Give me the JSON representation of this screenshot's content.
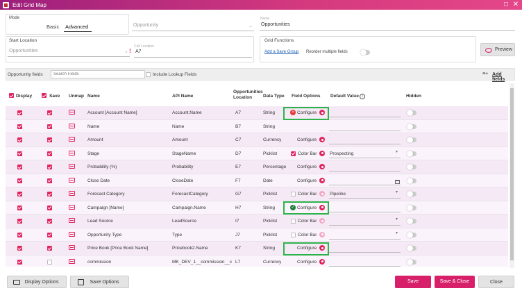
{
  "window": {
    "title": "Edit Grid Map"
  },
  "mode": {
    "label": "Mode",
    "tabs": [
      {
        "label": "Basic"
      },
      {
        "label": "Advanced"
      }
    ]
  },
  "object": {
    "hint": "",
    "value": "Opportunity"
  },
  "name": {
    "hint": "Name",
    "value": "Opportunities"
  },
  "start_location": {
    "label": "Start Location",
    "object_hint": "",
    "object_value": "Opportunities",
    "cell_hint": "Cell Location",
    "cell_value": "A7"
  },
  "grid_functions": {
    "label": "Grid Functions",
    "add_save_group": "Add a Save Group",
    "reorder_label": "Reorder multiple fields"
  },
  "preview_label": "Preview",
  "toolbar": {
    "fields_label": "Opportunity fields",
    "search_placeholder": "Search Fields",
    "include_lookup": "Include Lookup Fields",
    "add_fields": "Add fields"
  },
  "columns": {
    "display": "Display",
    "save": "Save",
    "unmap": "Unmap",
    "name": "Name",
    "api_name": "API Name",
    "location": "Opportunities Location",
    "data_type": "Data Type",
    "field_options": "Field Options",
    "default_value": "Default Value",
    "hidden": "Hidden"
  },
  "rows": [
    {
      "name": "Account [Account Name]",
      "api": "Account.Name",
      "loc": "A7",
      "type": "String",
      "option": "configure",
      "status": "error",
      "configure": "Configure",
      "default": "",
      "save": true,
      "hl": true
    },
    {
      "name": "Name",
      "api": "Name",
      "loc": "B7",
      "type": "String",
      "option": "none",
      "default": "",
      "save": true
    },
    {
      "name": "Amount",
      "api": "Amount",
      "loc": "C7",
      "type": "Currency",
      "option": "configure",
      "configure": "Configure",
      "default": "",
      "save": true
    },
    {
      "name": "Stage",
      "api": "StageName",
      "loc": "D7",
      "type": "Picklist",
      "option": "colorbar",
      "colorbar_checked": true,
      "colorbar": "Color Bar",
      "default": "Prospecting",
      "select": true,
      "save": true
    },
    {
      "name": "Probability (%)",
      "api": "Probability",
      "loc": "E7",
      "type": "Percentage",
      "option": "configure",
      "configure": "Configure",
      "default": "",
      "save": true
    },
    {
      "name": "Close Date",
      "api": "CloseDate",
      "loc": "F7",
      "type": "Date",
      "option": "configure",
      "configure": "Configure",
      "default": "",
      "date": true,
      "save": true
    },
    {
      "name": "Forecast Category",
      "api": "ForecastCategory",
      "loc": "G7",
      "type": "Picklist",
      "option": "colorbar",
      "colorbar_checked": false,
      "colorbar": "Color Bar",
      "default": "Pipeline",
      "select": true,
      "save": true
    },
    {
      "name": "Campaign [Name]",
      "api": "Campaign.Name",
      "loc": "H7",
      "type": "String",
      "option": "configure",
      "status": "ok",
      "configure": "Configure",
      "default": "",
      "save": true,
      "hl": true
    },
    {
      "name": "Lead Source",
      "api": "LeadSource",
      "loc": "I7",
      "type": "Picklist",
      "option": "colorbar",
      "colorbar_checked": false,
      "colorbar": "Color Bar",
      "default": "",
      "select": true,
      "save": true
    },
    {
      "name": "Opportunity Type",
      "api": "Type",
      "loc": "J7",
      "type": "Picklist",
      "option": "colorbar",
      "colorbar_checked": false,
      "colorbar": "Color Bar",
      "default": "",
      "select": true,
      "save": true
    },
    {
      "name": "Price Book [Price Book Name]",
      "api": "Pricebook2.Name",
      "loc": "K7",
      "type": "String",
      "option": "configure",
      "configure": "Configure",
      "default": "",
      "save": true,
      "hl": true
    },
    {
      "name": "commission",
      "api": "MK_DEV_1__commission__c",
      "loc": "L7",
      "type": "Currency",
      "option": "configure",
      "configure": "Configure",
      "default": "",
      "save": false
    }
  ],
  "footer": {
    "display_options": "Display Options",
    "save_options": "Save Options",
    "save": "Save",
    "save_close": "Save & Close",
    "close": "Close"
  },
  "colors": {
    "accent": "#e0245e",
    "title_start": "#9c1f7c",
    "title_end": "#e4488a",
    "highlight": "#2eb34a"
  }
}
